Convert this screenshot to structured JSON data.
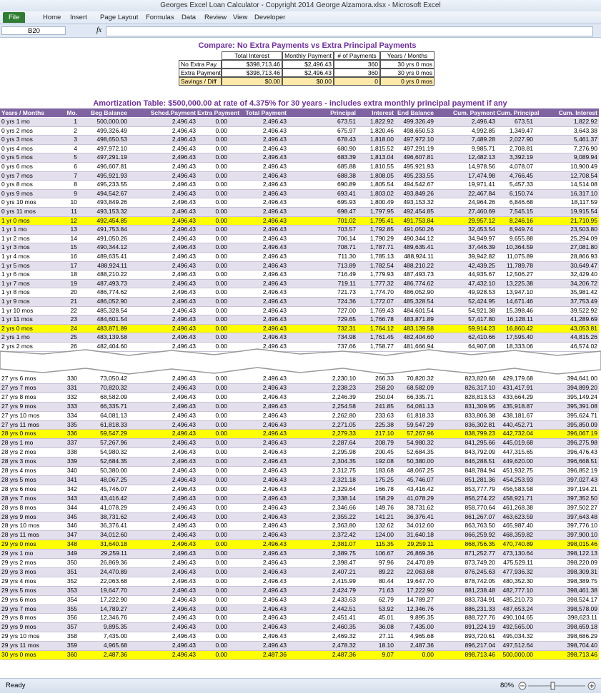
{
  "window": {
    "title": "Georges Excel Loan Calculator - Copyright 2014 George Alzamora.xlsx  -  Microsoft Excel",
    "tabs": [
      "File",
      "Home",
      "Insert",
      "Page Layout",
      "Formulas",
      "Data",
      "Review",
      "View",
      "Developer"
    ],
    "name_box": "B20",
    "formula_label": "fx"
  },
  "compare": {
    "title": "Compare: No Extra Payments vs Extra Principal Payments",
    "headers": [
      "Total Interest",
      "Monthly Payment",
      "# of Payments",
      "Years / Months"
    ],
    "rows": [
      [
        "No Extra Pay.",
        "$398,713.46",
        "$2,496.43",
        "360",
        "30 yrs 0 mos"
      ],
      [
        "Extra Payments",
        "$398,713.46",
        "$2,496.43",
        "360",
        "30 yrs 0 mos"
      ],
      [
        "Savings / Diff",
        "$0.00",
        "$0.00",
        "0",
        "0 yrs 0 mos"
      ]
    ]
  },
  "amortization": {
    "title": "Amortization Table:  $500,000.00 at rate of 4.375% for 30 years - includes extra monthly principal payment if any",
    "headers": [
      "Years / Months",
      "Mo.",
      "Beg Balance",
      "Sched.Payment",
      "Extra Payment",
      "Total Payment",
      "Principal",
      "Interest",
      "End Balance",
      "Cum. Payment",
      "Cum. Principal",
      "Cum. Interest"
    ],
    "top_rows": [
      [
        "0 yrs 1 mo",
        "1",
        "500,000.00",
        "2,496.43",
        "0.00",
        "2,496.43",
        "673.51",
        "1,822.92",
        "499,326.49",
        "2,496.43",
        "673.51",
        "1,822.92"
      ],
      [
        "0 yrs 2 mos",
        "2",
        "499,326.49",
        "2,496.43",
        "0.00",
        "2,496.43",
        "675.97",
        "1,820.46",
        "498,650.53",
        "4,992.85",
        "1,349.47",
        "3,643.38"
      ],
      [
        "0 yrs 3 mos",
        "3",
        "498,650.53",
        "2,496.43",
        "0.00",
        "2,496.43",
        "678.43",
        "1,818.00",
        "497,972.10",
        "7,489.28",
        "2,027.90",
        "5,461.37"
      ],
      [
        "0 yrs 4 mos",
        "4",
        "497,972.10",
        "2,496.43",
        "0.00",
        "2,496.43",
        "680.90",
        "1,815.52",
        "497,291.19",
        "9,985.71",
        "2,708.81",
        "7,276.90"
      ],
      [
        "0 yrs 5 mos",
        "5",
        "497,291.19",
        "2,496.43",
        "0.00",
        "2,496.43",
        "683.39",
        "1,813.04",
        "496,607.81",
        "12,482.13",
        "3,392.19",
        "9,089.94"
      ],
      [
        "0 yrs 6 mos",
        "6",
        "496,607.81",
        "2,496.43",
        "0.00",
        "2,496.43",
        "685.88",
        "1,810.55",
        "495,921.93",
        "14,978.56",
        "4,078.07",
        "10,900.49"
      ],
      [
        "0 yrs 7 mos",
        "7",
        "495,921.93",
        "2,496.43",
        "0.00",
        "2,496.43",
        "688.38",
        "1,808.05",
        "495,233.55",
        "17,474.98",
        "4,766.45",
        "12,708.54"
      ],
      [
        "0 yrs 8 mos",
        "8",
        "495,233.55",
        "2,496.43",
        "0.00",
        "2,496.43",
        "690.89",
        "1,805.54",
        "494,542.67",
        "19,971.41",
        "5,457.33",
        "14,514.08"
      ],
      [
        "0 yrs 9 mos",
        "9",
        "494,542.67",
        "2,496.43",
        "0.00",
        "2,496.43",
        "693.41",
        "1,803.02",
        "493,849.26",
        "22,467.84",
        "6,150.74",
        "16,317.10"
      ],
      [
        "0 yrs 10 mos",
        "10",
        "493,849.26",
        "2,496.43",
        "0.00",
        "2,496.43",
        "695.93",
        "1,800.49",
        "493,153.32",
        "24,964.26",
        "6,846.68",
        "18,117.59"
      ],
      [
        "0 yrs 11 mos",
        "11",
        "493,153.32",
        "2,496.43",
        "0.00",
        "2,496.43",
        "698.47",
        "1,797.95",
        "492,454.85",
        "27,460.69",
        "7,545.15",
        "19,915.54"
      ],
      [
        "1 yr 0 mos",
        "12",
        "492,454.85",
        "2,496.43",
        "0.00",
        "2,496.43",
        "701.02",
        "1,795.41",
        "491,753.84",
        "29,957.12",
        "8,246.16",
        "21,710.95"
      ],
      [
        "1 yr 1 mo",
        "13",
        "491,753.84",
        "2,496.43",
        "0.00",
        "2,496.43",
        "703.57",
        "1,792.85",
        "491,050.26",
        "32,453.54",
        "8,949.74",
        "23,503.80"
      ],
      [
        "1 yr 2 mos",
        "14",
        "491,050.26",
        "2,496.43",
        "0.00",
        "2,496.43",
        "706.14",
        "1,790.29",
        "490,344.12",
        "34,949.97",
        "9,655.88",
        "25,294.09"
      ],
      [
        "1 yr 3 mos",
        "15",
        "490,344.12",
        "2,496.43",
        "0.00",
        "2,496.43",
        "708.71",
        "1,787.71",
        "489,635.41",
        "37,446.39",
        "10,364.59",
        "27,081.80"
      ],
      [
        "1 yr 4 mos",
        "16",
        "489,635.41",
        "2,496.43",
        "0.00",
        "2,496.43",
        "711.30",
        "1,785.13",
        "488,924.11",
        "39,942.82",
        "11,075.89",
        "28,866.93"
      ],
      [
        "1 yr 5 mos",
        "17",
        "488,924.11",
        "2,496.43",
        "0.00",
        "2,496.43",
        "713.89",
        "1,782.54",
        "488,210.22",
        "42,439.25",
        "11,789.78",
        "30,649.47"
      ],
      [
        "1 yr 6 mos",
        "18",
        "488,210.22",
        "2,496.43",
        "0.00",
        "2,496.43",
        "716.49",
        "1,779.93",
        "487,493.73",
        "44,935.67",
        "12,506.27",
        "32,429.40"
      ],
      [
        "1 yr 7 mos",
        "19",
        "487,493.73",
        "2,496.43",
        "0.00",
        "2,496.43",
        "719.11",
        "1,777.32",
        "486,774.62",
        "47,432.10",
        "13,225.38",
        "34,206.72"
      ],
      [
        "1 yr 8 mos",
        "20",
        "486,774.62",
        "2,496.43",
        "0.00",
        "2,496.43",
        "721.73",
        "1,774.70",
        "486,052.90",
        "49,928.53",
        "13,947.10",
        "35,981.42"
      ],
      [
        "1 yr 9 mos",
        "21",
        "486,052.90",
        "2,496.43",
        "0.00",
        "2,496.43",
        "724.36",
        "1,772.07",
        "485,328.54",
        "52,424.95",
        "14,671.46",
        "37,753.49"
      ],
      [
        "1 yr 10 mos",
        "22",
        "485,328.54",
        "2,496.43",
        "0.00",
        "2,496.43",
        "727.00",
        "1,769.43",
        "484,601.54",
        "54,921.38",
        "15,398.46",
        "39,522.92"
      ],
      [
        "1 yr 11 mos",
        "23",
        "484,601.54",
        "2,496.43",
        "0.00",
        "2,496.43",
        "729.65",
        "1,766.78",
        "483,871.89",
        "57,417.80",
        "16,128.11",
        "41,289.69"
      ],
      [
        "2 yrs 0 mos",
        "24",
        "483,871.89",
        "2,496.43",
        "0.00",
        "2,496.43",
        "732.31",
        "1,764.12",
        "483,139.58",
        "59,914.23",
        "16,860.42",
        "43,053.81"
      ],
      [
        "2 yrs 1 mo",
        "25",
        "483,139.58",
        "2,496.43",
        "0.00",
        "2,496.43",
        "734.98",
        "1,761.45",
        "482,404.60",
        "62,410.66",
        "17,595.40",
        "44,815.26"
      ],
      [
        "2 yrs 2 mos",
        "26",
        "482,404.60",
        "2,496.43",
        "0.00",
        "2,496.43",
        "737.66",
        "1,758.77",
        "481,666.94",
        "64,907.08",
        "18,333.06",
        "46,574.02"
      ]
    ],
    "bottom_rows": [
      [
        "27 yrs 6 mos",
        "330",
        "73,050.42",
        "2,496.43",
        "0.00",
        "2,496.43",
        "2,230.10",
        "266.33",
        "70,820.32",
        "823,820.68",
        "429,179.68",
        "394,641.00"
      ],
      [
        "27 yrs 7 mos",
        "331",
        "70,820.32",
        "2,496.43",
        "0.00",
        "2,496.43",
        "2,238.23",
        "258.20",
        "68,582.09",
        "826,317.10",
        "431,417.91",
        "394,899.20"
      ],
      [
        "27 yrs 8 mos",
        "332",
        "68,582.09",
        "2,496.43",
        "0.00",
        "2,496.43",
        "2,246.39",
        "250.04",
        "66,335.71",
        "828,813.53",
        "433,664.29",
        "395,149.24"
      ],
      [
        "27 yrs 9 mos",
        "333",
        "66,335.71",
        "2,496.43",
        "0.00",
        "2,496.43",
        "2,254.58",
        "241.85",
        "64,081.13",
        "831,309.95",
        "435,918.87",
        "395,391.08"
      ],
      [
        "27 yrs 10 mos",
        "334",
        "64,081.13",
        "2,496.43",
        "0.00",
        "2,496.43",
        "2,262.80",
        "233.63",
        "61,818.33",
        "833,806.38",
        "438,181.67",
        "395,624.71"
      ],
      [
        "27 yrs 11 mos",
        "335",
        "61,818.33",
        "2,496.43",
        "0.00",
        "2,496.43",
        "2,271.05",
        "225.38",
        "59,547.29",
        "836,302.81",
        "440,452.71",
        "395,850.09"
      ],
      [
        "28 yrs 0 mos",
        "336",
        "59,547.29",
        "2,496.43",
        "0.00",
        "2,496.43",
        "2,279.33",
        "217.10",
        "57,267.96",
        "838,799.23",
        "442,732.04",
        "396,067.19"
      ],
      [
        "28 yrs 1 mo",
        "337",
        "57,267.96",
        "2,496.43",
        "0.00",
        "2,496.43",
        "2,287.64",
        "208.79",
        "54,980.32",
        "841,295.66",
        "445,019.68",
        "396,275.98"
      ],
      [
        "28 yrs 2 mos",
        "338",
        "54,980.32",
        "2,496.43",
        "0.00",
        "2,496.43",
        "2,295.98",
        "200.45",
        "52,684.35",
        "843,792.09",
        "447,315.65",
        "396,476.43"
      ],
      [
        "28 yrs 3 mos",
        "339",
        "52,684.35",
        "2,496.43",
        "0.00",
        "2,496.43",
        "2,304.35",
        "192.08",
        "50,380.00",
        "846,288.51",
        "449,620.00",
        "396,668.51"
      ],
      [
        "28 yrs 4 mos",
        "340",
        "50,380.00",
        "2,496.43",
        "0.00",
        "2,496.43",
        "2,312.75",
        "183.68",
        "48,067.25",
        "848,784.94",
        "451,932.75",
        "396,852.19"
      ],
      [
        "28 yrs 5 mos",
        "341",
        "48,067.25",
        "2,496.43",
        "0.00",
        "2,496.43",
        "2,321.18",
        "175.25",
        "45,746.07",
        "851,281.36",
        "454,253.93",
        "397,027.43"
      ],
      [
        "28 yrs 6 mos",
        "342",
        "45,746.07",
        "2,496.43",
        "0.00",
        "2,496.43",
        "2,329.64",
        "166.78",
        "43,416.42",
        "853,777.79",
        "456,583.58",
        "397,194.21"
      ],
      [
        "28 yrs 7 mos",
        "343",
        "43,416.42",
        "2,496.43",
        "0.00",
        "2,496.43",
        "2,338.14",
        "158.29",
        "41,078.29",
        "856,274.22",
        "458,921.71",
        "397,352.50"
      ],
      [
        "28 yrs 8 mos",
        "344",
        "41,078.29",
        "2,496.43",
        "0.00",
        "2,496.43",
        "2,346.66",
        "149.76",
        "38,731.62",
        "858,770.64",
        "461,268.38",
        "397,502.27"
      ],
      [
        "28 yrs 9 mos",
        "345",
        "38,731.62",
        "2,496.43",
        "0.00",
        "2,496.43",
        "2,355.22",
        "141.21",
        "36,376.41",
        "861,267.07",
        "463,623.59",
        "397,643.48"
      ],
      [
        "28 yrs 10 mos",
        "346",
        "36,376.41",
        "2,496.43",
        "0.00",
        "2,496.43",
        "2,363.80",
        "132.62",
        "34,012.60",
        "863,763.50",
        "465,987.40",
        "397,776.10"
      ],
      [
        "28 yrs 11 mos",
        "347",
        "34,012.60",
        "2,496.43",
        "0.00",
        "2,496.43",
        "2,372.42",
        "124.00",
        "31,640.18",
        "866,259.92",
        "468,359.82",
        "397,900.10"
      ],
      [
        "29 yrs 0 mos",
        "348",
        "31,640.18",
        "2,496.43",
        "0.00",
        "2,496.43",
        "2,381.07",
        "115.35",
        "29,259.11",
        "868,756.35",
        "470,740.89",
        "398,015.46"
      ],
      [
        "29 yrs 1 mo",
        "349",
        "29,259.11",
        "2,496.43",
        "0.00",
        "2,496.43",
        "2,389.75",
        "106.67",
        "26,869.36",
        "871,252.77",
        "473,130.64",
        "398,122.13"
      ],
      [
        "29 yrs 2 mos",
        "350",
        "26,869.36",
        "2,496.43",
        "0.00",
        "2,496.43",
        "2,398.47",
        "97.96",
        "24,470.89",
        "873,749.20",
        "475,529.11",
        "398,220.09"
      ],
      [
        "29 yrs 3 mos",
        "351",
        "24,470.89",
        "2,496.43",
        "0.00",
        "2,496.43",
        "2,407.21",
        "89.22",
        "22,063.68",
        "876,245.63",
        "477,936.32",
        "398,309.31"
      ],
      [
        "29 yrs 4 mos",
        "352",
        "22,063.68",
        "2,496.43",
        "0.00",
        "2,496.43",
        "2,415.99",
        "80.44",
        "19,647.70",
        "878,742.05",
        "480,352.30",
        "398,389.75"
      ],
      [
        "29 yrs 5 mos",
        "353",
        "19,647.70",
        "2,496.43",
        "0.00",
        "2,496.43",
        "2,424.79",
        "71.63",
        "17,222.90",
        "881,238.48",
        "482,777.10",
        "398,461.38"
      ],
      [
        "29 yrs 6 mos",
        "354",
        "17,222.90",
        "2,496.43",
        "0.00",
        "2,496.43",
        "2,433.63",
        "62.79",
        "14,789.27",
        "883,734.91",
        "485,210.73",
        "398,524.17"
      ],
      [
        "29 yrs 7 mos",
        "355",
        "14,789.27",
        "2,496.43",
        "0.00",
        "2,496.43",
        "2,442.51",
        "53.92",
        "12,346.76",
        "886,231.33",
        "487,653.24",
        "398,578.09"
      ],
      [
        "29 yrs 8 mos",
        "356",
        "12,346.76",
        "2,496.43",
        "0.00",
        "2,496.43",
        "2,451.41",
        "45.01",
        "9,895.35",
        "888,727.76",
        "490,104.65",
        "398,623.11"
      ],
      [
        "29 yrs 9 mos",
        "357",
        "9,895.35",
        "2,496.43",
        "0.00",
        "2,496.43",
        "2,460.35",
        "36.08",
        "7,435.00",
        "891,224.19",
        "492,565.00",
        "398,659.18"
      ],
      [
        "29 yrs 10 mos",
        "358",
        "7,435.00",
        "2,496.43",
        "0.00",
        "2,496.43",
        "2,469.32",
        "27.11",
        "4,965.68",
        "893,720.61",
        "495,034.32",
        "398,686.29"
      ],
      [
        "29 yrs 11 mos",
        "359",
        "4,965.68",
        "2,496.43",
        "0.00",
        "2,496.43",
        "2,478.32",
        "18.10",
        "2,487.36",
        "896,217.04",
        "497,512.64",
        "398,704.40"
      ],
      [
        "30 yrs 0 mos",
        "360",
        "2,487.36",
        "2,496.43",
        "0.00",
        "2,487.36",
        "2,487.36",
        "9.07",
        "0.00",
        "898,713.46",
        "500,000.00",
        "398,713.46"
      ]
    ]
  },
  "status": {
    "mode": "Ready",
    "zoom": "80%"
  }
}
